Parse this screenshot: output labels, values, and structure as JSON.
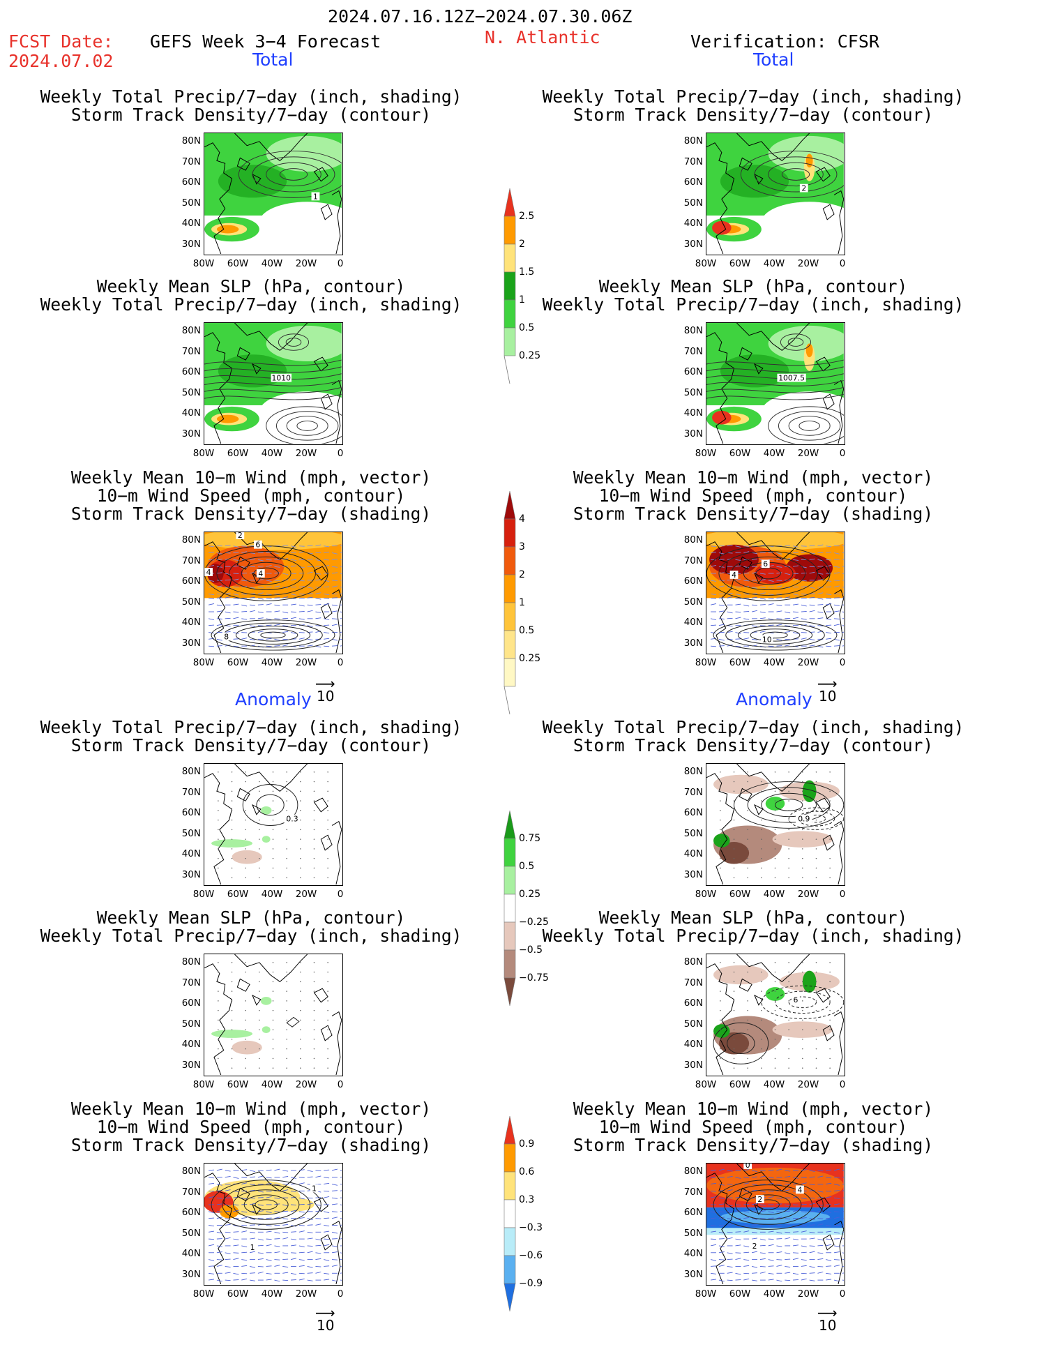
{
  "header": {
    "date_range": "2024.07.16.12Z−2024.07.30.06Z",
    "fcst_label": "FCST Date:",
    "fcst_date": "2024.07.02",
    "model_title": "GEFS Week 3−4 Forecast",
    "region": "N. Atlantic",
    "verification": "Verification: CFSR",
    "colors": {
      "accent_red": "#e8322b",
      "accent_blue": "#1f3fff"
    }
  },
  "sections": {
    "total_label": "Total",
    "anomaly_label": "Anomaly"
  },
  "panel_titles": {
    "precip_storm": [
      "Weekly Total Precip/7−day (inch, shading)",
      "Storm Track Density/7−day (contour)"
    ],
    "slp_precip": [
      "Weekly Mean SLP (hPa, contour)",
      "Weekly Total Precip/7−day (inch, shading)"
    ],
    "wind_storm": [
      "Weekly Mean 10−m Wind (mph, vector)",
      "10−m Wind Speed (mph, contour)",
      "Storm Track Density/7−day (shading)"
    ]
  },
  "axes": {
    "lat_labels": [
      "80N",
      "70N",
      "60N",
      "50N",
      "40N",
      "30N"
    ],
    "lon_labels": [
      "80W",
      "60W",
      "40W",
      "20W",
      "0"
    ]
  },
  "vector_ref": "10",
  "contour_labels": {
    "l_total_precip": "1",
    "r_total_precip": "2",
    "l_total_slp": "1010",
    "r_total_slp": "1007.5",
    "l_total_wind": [
      "2",
      "6",
      "4",
      "4",
      "8"
    ],
    "r_total_wind": [
      "6",
      "4",
      "10"
    ],
    "l_anom_precip": "0.3",
    "r_anom_precip": "0.9",
    "r_anom_slp": "6",
    "l_anom_wind": [
      "1",
      "1"
    ],
    "r_anom_wind": [
      "0",
      "2",
      "4",
      "2"
    ]
  },
  "colorbars": {
    "precip_total": {
      "labels": [
        "2.5",
        "2",
        "1.5",
        "1",
        "0.5",
        "0.25"
      ],
      "colors": [
        "#e8321e",
        "#ff9a00",
        "#ffe37a",
        "#1aa31a",
        "#3fd33f",
        "#a8f0a0"
      ]
    },
    "storm_total": {
      "labels": [
        "4",
        "3",
        "2",
        "1",
        "0.5",
        "0.25"
      ],
      "colors": [
        "#9e0a0a",
        "#d6200e",
        "#f05a0c",
        "#ff9a00",
        "#ffc43a",
        "#ffe58a",
        "#fff8c4"
      ]
    },
    "precip_anom": {
      "labels": [
        "0.75",
        "0.5",
        "0.25",
        "−0.25",
        "−0.5",
        "−0.75"
      ],
      "colors": [
        "#1a9a1a",
        "#3fd33f",
        "#a8f0a0",
        "#ffffff",
        "#e6c8bc",
        "#b48a7c",
        "#7a4a3c"
      ]
    },
    "wind_anom": {
      "labels": [
        "0.9",
        "0.6",
        "0.3",
        "−0.3",
        "−0.6",
        "−0.9"
      ],
      "colors": [
        "#e8321e",
        "#ff9a00",
        "#ffe37a",
        "#ffffff",
        "#b8ecf8",
        "#5ab0f0",
        "#1f6fe0"
      ]
    }
  }
}
